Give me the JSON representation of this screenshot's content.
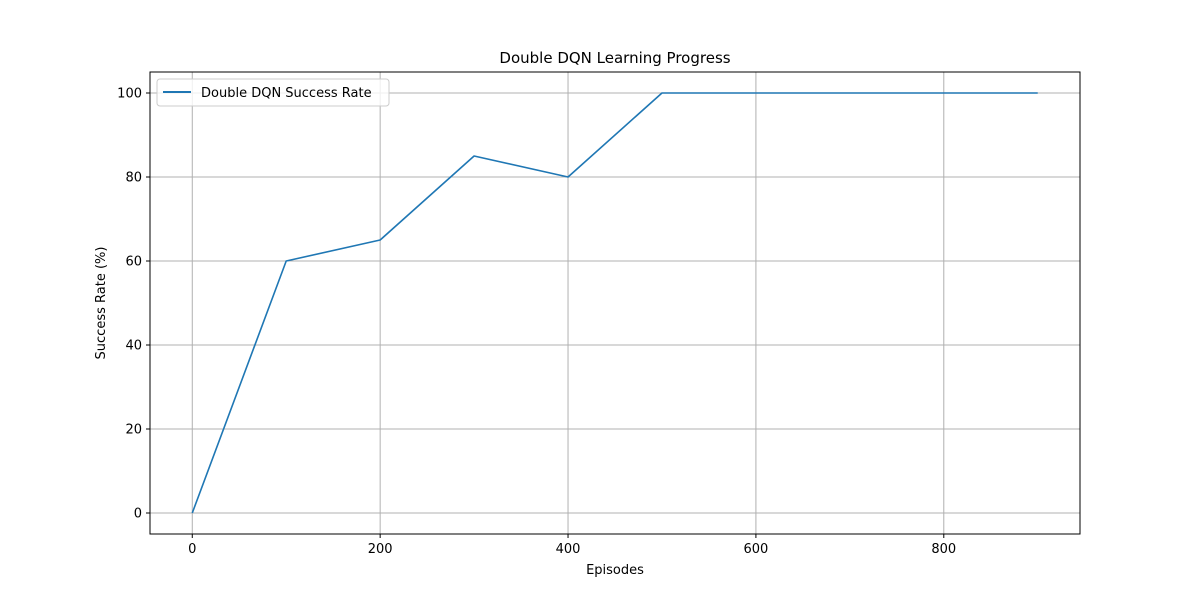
{
  "chart_data": {
    "type": "line",
    "title": "Double DQN Learning Progress",
    "xlabel": "Episodes",
    "ylabel": "Success Rate (%)",
    "xlim": [
      -45,
      945
    ],
    "ylim": [
      -5,
      105
    ],
    "xticks": [
      0,
      200,
      400,
      600,
      800
    ],
    "yticks": [
      0,
      20,
      40,
      60,
      80,
      100
    ],
    "grid": true,
    "legend_position": "top-left",
    "series": [
      {
        "name": "Double DQN Success Rate",
        "color": "#1f77b4",
        "x": [
          0,
          100,
          200,
          300,
          400,
          500,
          600,
          700,
          800,
          900
        ],
        "y": [
          0,
          60,
          65,
          85,
          80,
          100,
          100,
          100,
          100,
          100
        ]
      }
    ]
  }
}
